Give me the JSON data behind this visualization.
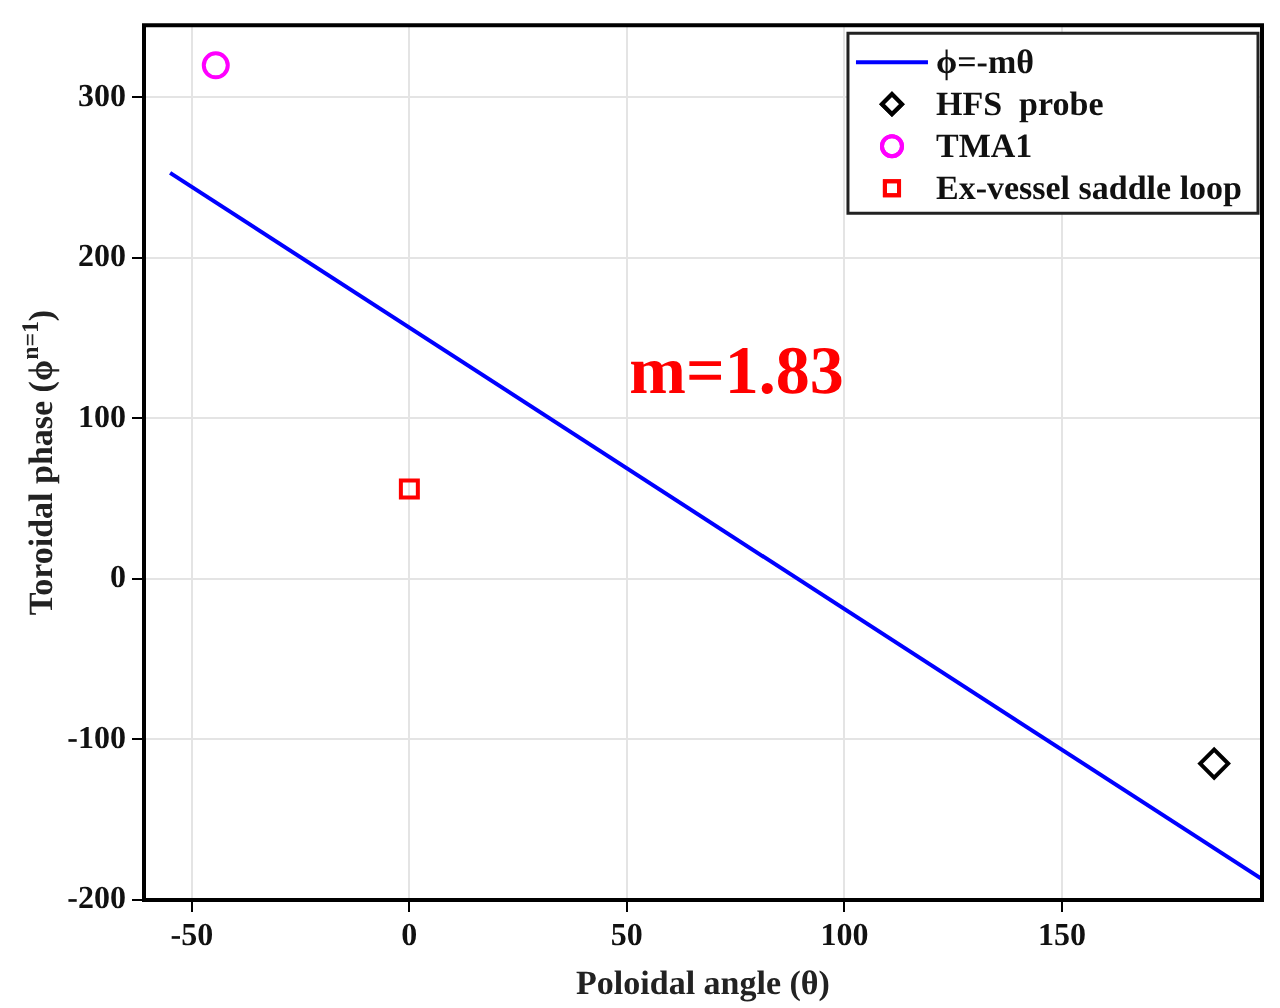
{
  "chart_data": {
    "type": "scatter",
    "xlabel": "Poloidal angle (θ)",
    "ylabel": "Toroidal phase (ϕ$^{n=1}$)",
    "xlim": [
      -61,
      196
    ],
    "xticks": [
      -50,
      0,
      50,
      100,
      150
    ],
    "ylim": [
      -200,
      345
    ],
    "yticks": [
      -200,
      -100,
      0,
      100,
      200,
      300
    ],
    "grid": true,
    "legend": "top right",
    "series": [
      {
        "name": "ϕ=-mθ",
        "type": "line",
        "color": "#0000ff",
        "marker": "none",
        "x": [
          -55,
          196
        ],
        "values": [
          253,
          -187
        ]
      },
      {
        "name": "HFS  probe",
        "color": "#000000",
        "marker": "diamond",
        "x": [
          185
        ],
        "values": [
          -115
        ]
      },
      {
        "name": "TMA1",
        "color": "#ff00ff",
        "marker": "circle",
        "x": [
          -44.5
        ],
        "values": [
          320
        ]
      },
      {
        "name": "Ex-vessel saddle loop",
        "color": "#ff0000",
        "marker": "square",
        "x": [
          0
        ],
        "values": [
          56
        ]
      }
    ],
    "annotations": [
      "m=1.83"
    ]
  }
}
